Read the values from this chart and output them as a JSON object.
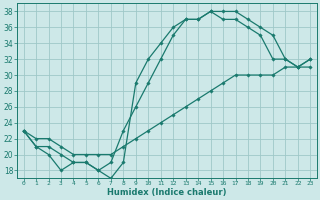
{
  "xlabel": "Humidex (Indice chaleur)",
  "xlim": [
    -0.5,
    23.5
  ],
  "ylim": [
    17,
    39
  ],
  "xticks": [
    0,
    1,
    2,
    3,
    4,
    5,
    6,
    7,
    8,
    9,
    10,
    11,
    12,
    13,
    14,
    15,
    16,
    17,
    18,
    19,
    20,
    21,
    22,
    23
  ],
  "yticks": [
    18,
    20,
    22,
    24,
    26,
    28,
    30,
    32,
    34,
    36,
    38
  ],
  "bg_color": "#cde8e8",
  "grid_color": "#9fc8c8",
  "line_color": "#1a7a6e",
  "line1_x": [
    0,
    1,
    2,
    3,
    4,
    5,
    6,
    7,
    8,
    9,
    10,
    11,
    12,
    13,
    14,
    15,
    16,
    17,
    18,
    19,
    20,
    21,
    22,
    23
  ],
  "line1_y": [
    23,
    21,
    20,
    18,
    19,
    19,
    18,
    17,
    19,
    29,
    32,
    34,
    36,
    37,
    37,
    38,
    38,
    38,
    37,
    36,
    35,
    32,
    31,
    32
  ],
  "line2_x": [
    0,
    1,
    2,
    3,
    4,
    5,
    6,
    7,
    8,
    9,
    10,
    11,
    12,
    13,
    14,
    15,
    16,
    17,
    18,
    19,
    20,
    21,
    22,
    23
  ],
  "line2_y": [
    23,
    21,
    21,
    20,
    19,
    19,
    18,
    19,
    23,
    26,
    29,
    32,
    35,
    37,
    37,
    38,
    37,
    37,
    36,
    35,
    32,
    32,
    31,
    31
  ],
  "line3_x": [
    0,
    1,
    2,
    3,
    4,
    5,
    6,
    7,
    8,
    9,
    10,
    11,
    12,
    13,
    14,
    15,
    16,
    17,
    18,
    19,
    20,
    21,
    22,
    23
  ],
  "line3_y": [
    23,
    22,
    22,
    21,
    20,
    20,
    20,
    20,
    21,
    22,
    23,
    24,
    25,
    26,
    27,
    28,
    29,
    30,
    30,
    30,
    30,
    31,
    31,
    32
  ]
}
